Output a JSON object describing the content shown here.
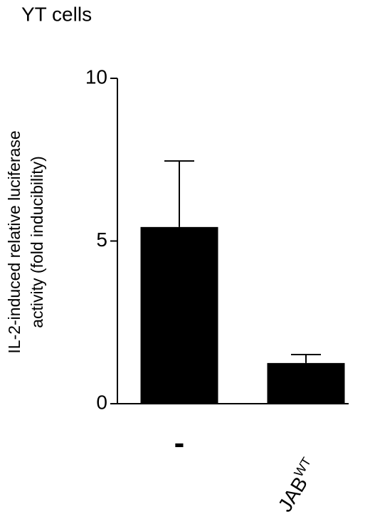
{
  "chart_data": {
    "type": "bar",
    "title": "YT cells",
    "ylabel": [
      "IL-2-induced relative luciferase",
      "activity (fold inducibility)"
    ],
    "categories": [
      "-",
      "JAB"
    ],
    "category_superscripts": [
      null,
      "WT"
    ],
    "values": [
      5.43,
      1.25
    ],
    "errors": [
      2.03,
      0.26
    ],
    "color": "#000000",
    "ylim": [
      0,
      10
    ],
    "yticks": [
      0,
      5,
      10
    ],
    "grid": false
  }
}
